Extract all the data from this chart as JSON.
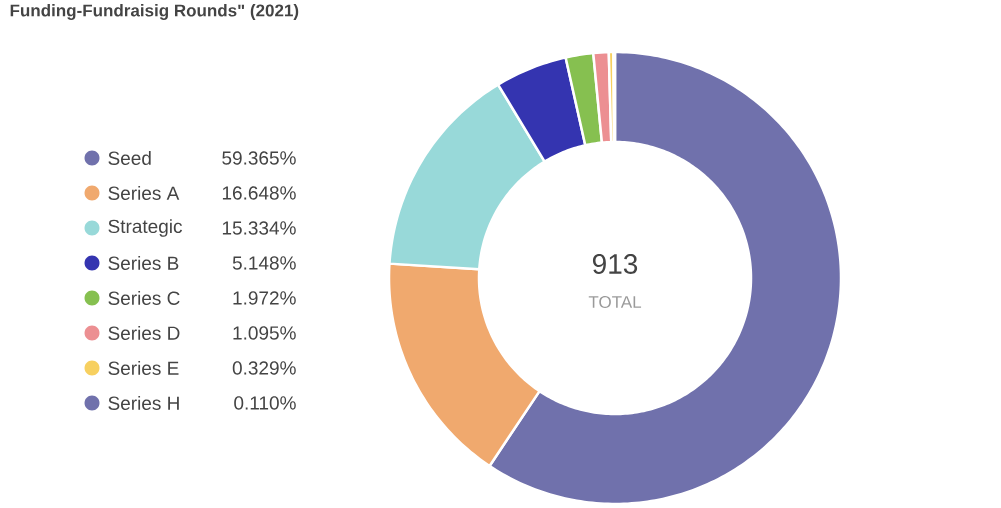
{
  "chart_data": {
    "type": "donut",
    "title": "Funding-Fundraisig Rounds\" (2021)",
    "categories": [
      "Seed",
      "Series A",
      "Strategic",
      "Series B",
      "Series C",
      "Series D",
      "Series E",
      "Series H"
    ],
    "values": [
      59.365,
      16.648,
      15.334,
      5.148,
      1.972,
      1.095,
      0.329,
      0.11
    ],
    "colors": [
      "#7071ac",
      "#f0a96e",
      "#98d9d9",
      "#3434b0",
      "#86c050",
      "#ec8f92",
      "#f7d060",
      "#7071ac"
    ],
    "value_labels": [
      "59.365%",
      "16.648%",
      "15.334%",
      "5.148%",
      "1.972%",
      "1.095%",
      "0.329%",
      "0.110%"
    ],
    "legend": "left",
    "annotations": [
      "913",
      "TOTAL"
    ]
  }
}
